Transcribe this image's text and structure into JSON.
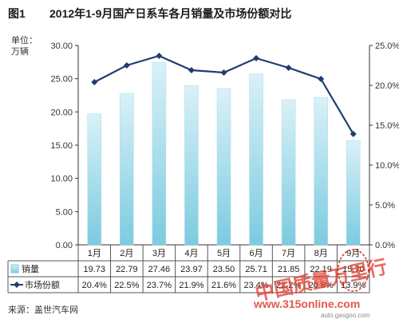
{
  "figure": {
    "label": "图1",
    "title": "2012年1-9月国产日系车各月销量及市场份额对比",
    "source": "来源：盖世汽车网"
  },
  "chart_data": {
    "type": "bar",
    "categories": [
      "1月",
      "2月",
      "3月",
      "4月",
      "5月",
      "6月",
      "7月",
      "8月",
      "9月"
    ],
    "series": [
      {
        "name": "销量",
        "type": "bar",
        "axis": "left",
        "values": [
          19.73,
          22.79,
          27.46,
          23.97,
          23.5,
          25.71,
          21.85,
          22.19,
          15.7
        ],
        "labels": [
          "19.73",
          "22.79",
          "27.46",
          "23.97",
          "23.50",
          "25.71",
          "21.85",
          "22.19",
          "15.70"
        ],
        "color": "#8fd3e6"
      },
      {
        "name": "市场份额",
        "type": "line",
        "axis": "right",
        "values": [
          20.4,
          22.5,
          23.7,
          21.9,
          21.6,
          23.4,
          22.2,
          20.8,
          13.9
        ],
        "labels": [
          "20.4%",
          "22.5%",
          "23.7%",
          "21.9%",
          "21.6%",
          "23.4%",
          "22.2%",
          "20.8%",
          "13.9%"
        ],
        "color": "#1f3c73"
      }
    ],
    "y_left": {
      "label_line1": "单位：",
      "label_line2": "万辆",
      "range": [
        0,
        30
      ],
      "ticks": [
        "0.00",
        "5.00",
        "10.00",
        "15.00",
        "20.00",
        "25.00",
        "30.00"
      ]
    },
    "y_right": {
      "range": [
        0,
        25
      ],
      "ticks": [
        "0.0%",
        "5.0%",
        "10.0%",
        "15.0%",
        "20.0%",
        "25.0%"
      ]
    },
    "grid": false,
    "legend": "data-table"
  },
  "watermark": {
    "brand": "中国质量万里行",
    "site": "www.315online.com",
    "mark": "auto.gasgoo.com"
  },
  "colors": {
    "bar_top": "#d9f1f8",
    "bar_bottom": "#7ccbe0",
    "line": "#1f3c73",
    "axis": "#333333",
    "watermark": "#e03a2a"
  }
}
